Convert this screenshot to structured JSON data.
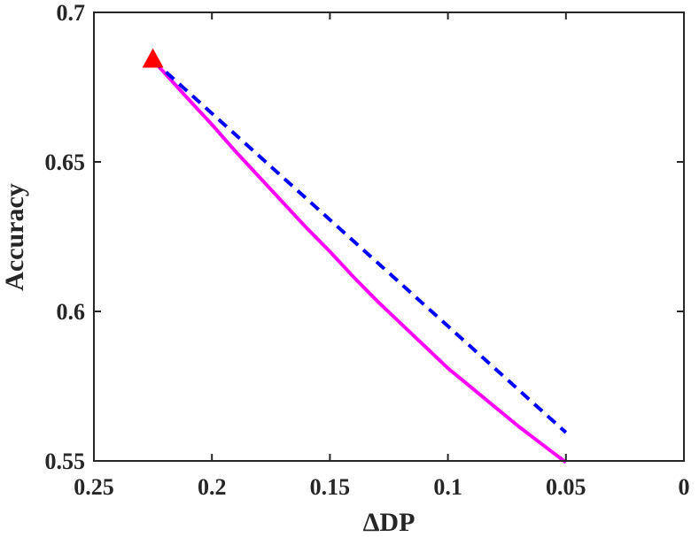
{
  "chart_data": {
    "type": "line",
    "xlabel": "ΔDP",
    "ylabel": "Accuracy",
    "xlim": [
      0.25,
      0
    ],
    "ylim": [
      0.55,
      0.7
    ],
    "x_reversed": true,
    "grid": false,
    "x_ticks": [
      "0.25",
      "0.2",
      "0.15",
      "0.1",
      "0.05",
      "0"
    ],
    "y_ticks": [
      "0.55",
      "0.6",
      "0.65",
      "0.7"
    ],
    "x_tick_values": [
      0.25,
      0.2,
      0.15,
      0.1,
      0.05,
      0
    ],
    "y_tick_values": [
      0.55,
      0.6,
      0.65,
      0.7
    ],
    "series": [
      {
        "style": "solid",
        "color": "#ff00ff",
        "x": [
          0.225,
          0.21,
          0.2,
          0.19,
          0.18,
          0.17,
          0.16,
          0.15,
          0.14,
          0.13,
          0.12,
          0.11,
          0.1,
          0.09,
          0.08,
          0.07,
          0.06,
          0.05
        ],
        "y": [
          0.684,
          0.671,
          0.6625,
          0.6535,
          0.645,
          0.6365,
          0.628,
          0.62,
          0.6115,
          0.6035,
          0.596,
          0.5885,
          0.581,
          0.5745,
          0.568,
          0.5615,
          0.5555,
          0.5495
        ]
      },
      {
        "style": "dashed",
        "color": "#0000ff",
        "x": [
          0.225,
          0.05
        ],
        "y": [
          0.684,
          0.5595
        ]
      }
    ],
    "markers": [
      {
        "shape": "triangle",
        "color": "#ff0000",
        "x": 0.225,
        "y": 0.684
      }
    ]
  }
}
